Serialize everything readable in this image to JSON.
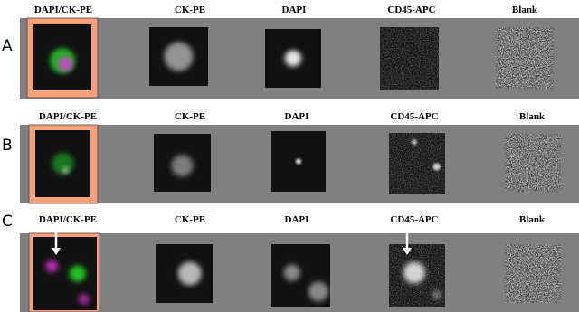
{
  "panels": [
    {
      "label": "A",
      "columns": [
        "DAPI/CK-PE",
        "CK-PE",
        "DAPI",
        "CD45-APC",
        "Blank"
      ]
    },
    {
      "label": "B",
      "columns": [
        "DAPI/CK-PE",
        "CK-PE",
        "DAPI",
        "CD45-APC",
        "Blank"
      ]
    },
    {
      "label": "C",
      "columns": [
        "DAPI/CK-PE",
        "CK-PE",
        "DAPI",
        "CD45-APC",
        "Blank"
      ]
    }
  ]
}
